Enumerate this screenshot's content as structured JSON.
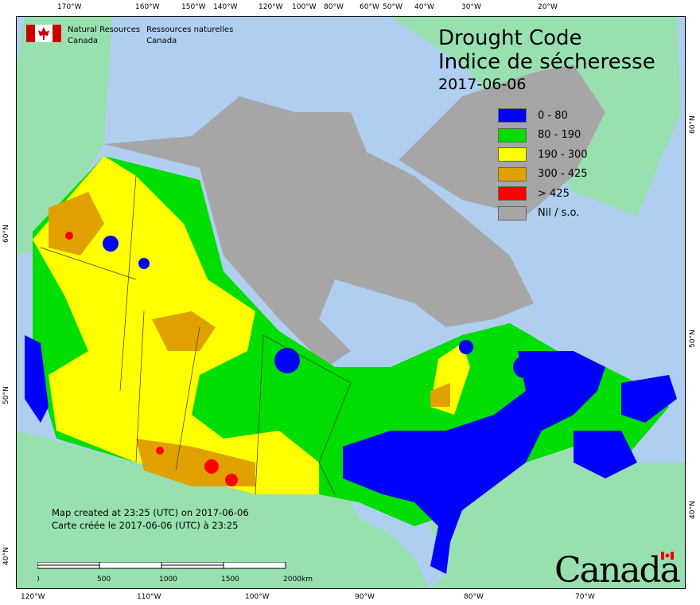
{
  "top_axis": [
    "170°W",
    "160°W",
    "150°W",
    "140°W",
    "120°W",
    "100°W",
    "80°W",
    "60°W",
    "50°W",
    "40°W",
    "30°W",
    "20°W"
  ],
  "bottom_axis": [
    "120°W",
    "110°W",
    "100°W",
    "90°W",
    "80°W",
    "70°W"
  ],
  "left_axis": [
    "60°N",
    "50°N",
    "40°N"
  ],
  "right_axis": [
    "60°N",
    "50°N",
    "40°N"
  ],
  "agency": {
    "en_line1": "Natural Resources",
    "en_line2": "Canada",
    "fr_line1": "Ressources naturelles",
    "fr_line2": "Canada"
  },
  "title": {
    "en": "Drought Code",
    "fr": "Indice de sécheresse",
    "date": "2017-06-06"
  },
  "legend": [
    {
      "label": "0 - 80",
      "color": "#0000ff"
    },
    {
      "label": "80 - 190",
      "color": "#00dd00"
    },
    {
      "label": "190 - 300",
      "color": "#ffff00"
    },
    {
      "label": "300 - 425",
      "color": "#e0a000"
    },
    {
      "label": "> 425",
      "color": "#ff0000"
    },
    {
      "label": "Nil / s.o.",
      "color": "#a6a6a6"
    }
  ],
  "created": {
    "en": "Map created at 23:25 (UTC) on 2017-06-06",
    "fr": "Carte créée le 2017-06-06 (UTC) à 23:25"
  },
  "scale_bar": {
    "labels": [
      "0",
      "500",
      "1000",
      "1500",
      "2000"
    ],
    "unit": "km"
  },
  "wordmark": "Canada",
  "colors": {
    "ocean": "#b0cff0",
    "foreign_land": "#98e0b0"
  }
}
